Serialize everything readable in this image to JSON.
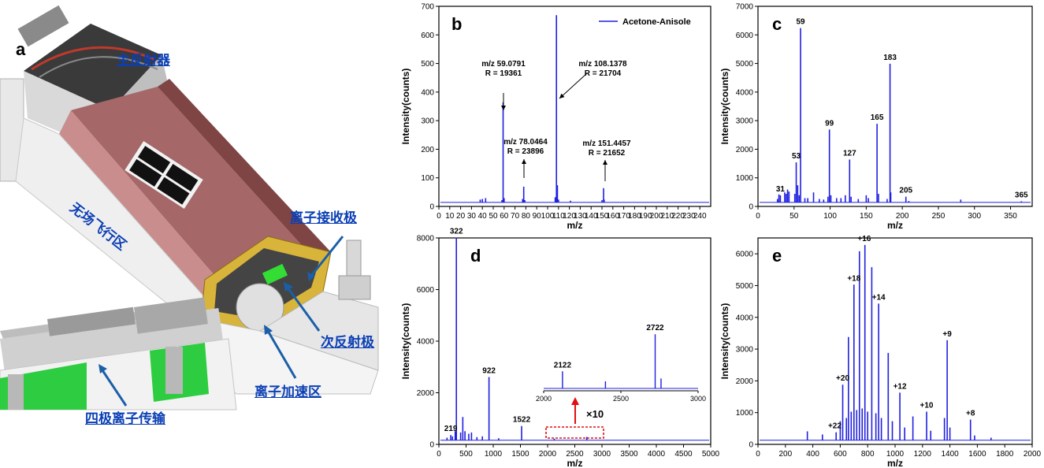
{
  "panel_a": {
    "letter": "a",
    "labels": [
      "主反射器",
      "无场飞行区",
      "离子接收极",
      "次反射极",
      "离子加速区",
      "四极离子传输"
    ]
  },
  "chart_data": [
    {
      "panel": "b",
      "type": "line",
      "title": "",
      "xlabel": "m/z",
      "ylabel": "Intensity(counts)",
      "xlim": [
        0,
        250
      ],
      "ylim": [
        0,
        700
      ],
      "xticks": [
        0,
        10,
        20,
        30,
        40,
        50,
        60,
        70,
        80,
        90,
        100,
        110,
        120,
        130,
        140,
        150,
        160,
        170,
        180,
        190,
        200,
        210,
        220,
        230,
        240
      ],
      "yticks": [
        0,
        100,
        200,
        300,
        400,
        500,
        600,
        700
      ],
      "legend": "top-right",
      "series": [
        {
          "name": "Acetone-Anisole",
          "color": "#1f1fe0"
        }
      ],
      "peaks": [
        [
          38,
          10
        ],
        [
          40,
          12
        ],
        [
          43,
          15
        ],
        [
          58,
          8
        ],
        [
          59.08,
          350
        ],
        [
          60,
          15
        ],
        [
          77,
          12
        ],
        [
          78.05,
          55
        ],
        [
          79,
          8
        ],
        [
          107,
          18
        ],
        [
          108.14,
          655
        ],
        [
          109,
          60
        ],
        [
          110,
          10
        ],
        [
          121,
          6
        ],
        [
          150,
          8
        ],
        [
          151.45,
          50
        ],
        [
          152,
          10
        ]
      ],
      "annotations": [
        {
          "text": "m/z 59.0791",
          "text2": "R = 19361",
          "x": 59.08
        },
        {
          "text": "m/z 78.0464",
          "text2": "R = 23896",
          "x": 78.05
        },
        {
          "text": "m/z 108.1378",
          "text2": "R = 21704",
          "x": 108.14
        },
        {
          "text": "m/z 151.4457",
          "text2": "R = 21652",
          "x": 151.45
        }
      ]
    },
    {
      "panel": "c",
      "type": "line",
      "title": "",
      "xlabel": "m/z",
      "ylabel": "Intensity(counts)",
      "xlim": [
        0,
        380
      ],
      "ylim": [
        0,
        7000
      ],
      "xticks": [
        0,
        50,
        100,
        150,
        200,
        250,
        300,
        350
      ],
      "yticks": [
        0,
        1000,
        2000,
        3000,
        4000,
        5000,
        6000,
        7000
      ],
      "peaks": [
        [
          27,
          120
        ],
        [
          29,
          280
        ],
        [
          31,
          250
        ],
        [
          37,
          350
        ],
        [
          39,
          300
        ],
        [
          41,
          450
        ],
        [
          43,
          380
        ],
        [
          51,
          300
        ],
        [
          53,
          1400
        ],
        [
          55,
          600
        ],
        [
          57,
          250
        ],
        [
          59,
          6100
        ],
        [
          65,
          150
        ],
        [
          69,
          150
        ],
        [
          77,
          350
        ],
        [
          85,
          120
        ],
        [
          91,
          100
        ],
        [
          97,
          200
        ],
        [
          99,
          2550
        ],
        [
          101,
          250
        ],
        [
          109,
          150
        ],
        [
          115,
          150
        ],
        [
          121,
          250
        ],
        [
          127,
          1500
        ],
        [
          129,
          200
        ],
        [
          139,
          120
        ],
        [
          150,
          250
        ],
        [
          153,
          150
        ],
        [
          165,
          2750
        ],
        [
          167,
          300
        ],
        [
          179,
          120
        ],
        [
          183,
          4850
        ],
        [
          184,
          350
        ],
        [
          205,
          200
        ],
        [
          209,
          50
        ],
        [
          281,
          100
        ],
        [
          365,
          40
        ]
      ],
      "peak_labels": [
        {
          "text": "31",
          "x": 31
        },
        {
          "text": "53",
          "x": 53
        },
        {
          "text": "59",
          "x": 59
        },
        {
          "text": "99",
          "x": 99
        },
        {
          "text": "127",
          "x": 127
        },
        {
          "text": "165",
          "x": 165
        },
        {
          "text": "183",
          "x": 183
        },
        {
          "text": "205",
          "x": 205
        },
        {
          "text": "365",
          "x": 365
        }
      ]
    },
    {
      "panel": "d",
      "type": "line",
      "title": "",
      "xlabel": "m/z",
      "ylabel": "Intensity(counts)",
      "xlim": [
        0,
        5000
      ],
      "ylim": [
        0,
        8000
      ],
      "xticks": [
        0,
        500,
        1000,
        1500,
        2000,
        2500,
        3000,
        3500,
        4000,
        4500,
        5000
      ],
      "yticks": [
        0,
        2000,
        4000,
        6000,
        8000
      ],
      "peaks": [
        [
          150,
          100
        ],
        [
          219,
          200
        ],
        [
          250,
          150
        ],
        [
          300,
          350
        ],
        [
          322,
          7850
        ],
        [
          400,
          300
        ],
        [
          440,
          900
        ],
        [
          480,
          350
        ],
        [
          550,
          250
        ],
        [
          600,
          300
        ],
        [
          700,
          120
        ],
        [
          800,
          150
        ],
        [
          922,
          2450
        ],
        [
          1100,
          80
        ],
        [
          1522,
          550
        ],
        [
          2122,
          60
        ],
        [
          2722,
          130
        ]
      ],
      "peak_labels": [
        {
          "text": "219",
          "x": 219
        },
        {
          "text": "322",
          "x": 322
        },
        {
          "text": "922",
          "x": 922
        },
        {
          "text": "1522",
          "x": 1522
        }
      ],
      "highlight_box": [
        2000,
        3000
      ],
      "zoom_label": "×10",
      "inset": {
        "xlim": [
          2000,
          3000
        ],
        "xticks": [
          2000,
          2500,
          3000
        ],
        "peaks": [
          [
            2122,
            600
          ],
          [
            2400,
            250
          ],
          [
            2722,
            1900
          ],
          [
            2760,
            350
          ]
        ],
        "peak_labels": [
          {
            "text": "2122",
            "x": 2122
          },
          {
            "text": "2722",
            "x": 2722
          }
        ]
      }
    },
    {
      "panel": "e",
      "type": "line",
      "title": "",
      "xlabel": "m/z",
      "ylabel": "Intensity(counts)",
      "xlim": [
        0,
        2000
      ],
      "ylim": [
        0,
        6500
      ],
      "xticks": [
        0,
        200,
        400,
        600,
        800,
        1000,
        1200,
        1400,
        1600,
        1800,
        2000
      ],
      "yticks": [
        0,
        1000,
        2000,
        3000,
        4000,
        5000,
        6000
      ],
      "peaks": [
        [
          360,
          280
        ],
        [
          470,
          180
        ],
        [
          570,
          250
        ],
        [
          600,
          600
        ],
        [
          618,
          1750
        ],
        [
          645,
          700
        ],
        [
          660,
          3250
        ],
        [
          680,
          900
        ],
        [
          700,
          4900
        ],
        [
          720,
          950
        ],
        [
          740,
          5950
        ],
        [
          760,
          1000
        ],
        [
          780,
          6150
        ],
        [
          800,
          900
        ],
        [
          830,
          5450
        ],
        [
          860,
          850
        ],
        [
          880,
          4300
        ],
        [
          900,
          700
        ],
        [
          950,
          2750
        ],
        [
          980,
          600
        ],
        [
          1035,
          1500
        ],
        [
          1070,
          400
        ],
        [
          1130,
          750
        ],
        [
          1230,
          900
        ],
        [
          1260,
          300
        ],
        [
          1360,
          700
        ],
        [
          1380,
          3150
        ],
        [
          1400,
          400
        ],
        [
          1550,
          650
        ],
        [
          1580,
          150
        ],
        [
          1700,
          80
        ]
      ],
      "peak_labels": [
        {
          "text": "+22",
          "x": 560
        },
        {
          "text": "+20",
          "x": 618
        },
        {
          "text": "+18",
          "x": 700
        },
        {
          "text": "+16",
          "x": 775
        },
        {
          "text": "+14",
          "x": 880
        },
        {
          "text": "+12",
          "x": 1035
        },
        {
          "text": "+10",
          "x": 1230
        },
        {
          "text": "+9",
          "x": 1380
        },
        {
          "text": "+8",
          "x": 1550
        }
      ]
    }
  ]
}
